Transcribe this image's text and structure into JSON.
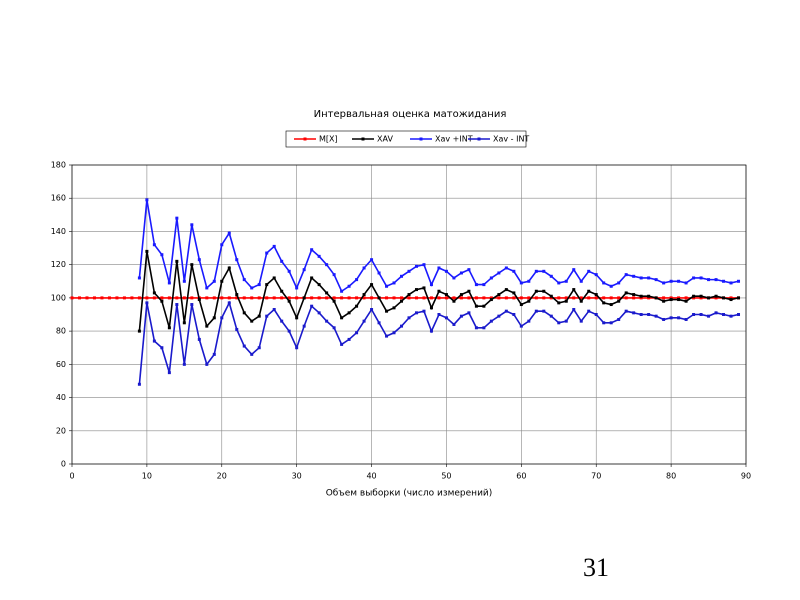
{
  "chart_data": {
    "type": "line",
    "title": "Интервальная оценка матожидания",
    "xlabel": "Объем выборки (число измерений)",
    "x": [
      0,
      1,
      2,
      3,
      4,
      5,
      6,
      7,
      8,
      9,
      10,
      11,
      12,
      13,
      14,
      15,
      16,
      17,
      18,
      19,
      20,
      21,
      22,
      23,
      24,
      25,
      26,
      27,
      28,
      29,
      30,
      31,
      32,
      33,
      34,
      35,
      36,
      37,
      38,
      39,
      40,
      41,
      42,
      43,
      44,
      45,
      46,
      47,
      48,
      49,
      50,
      51,
      52,
      53,
      54,
      55,
      56,
      57,
      58,
      59,
      60,
      61,
      62,
      63,
      64,
      65,
      66,
      67,
      68,
      69,
      70,
      71,
      72,
      73,
      74,
      75,
      76,
      77,
      78,
      79,
      80,
      81,
      82,
      83,
      84,
      85,
      86,
      87,
      88,
      89
    ],
    "series": [
      {
        "name": "M[X]",
        "color": "#ff0000",
        "values": [
          100,
          100,
          100,
          100,
          100,
          100,
          100,
          100,
          100,
          100,
          100,
          100,
          100,
          100,
          100,
          100,
          100,
          100,
          100,
          100,
          100,
          100,
          100,
          100,
          100,
          100,
          100,
          100,
          100,
          100,
          100,
          100,
          100,
          100,
          100,
          100,
          100,
          100,
          100,
          100,
          100,
          100,
          100,
          100,
          100,
          100,
          100,
          100,
          100,
          100,
          100,
          100,
          100,
          100,
          100,
          100,
          100,
          100,
          100,
          100,
          100,
          100,
          100,
          100,
          100,
          100,
          100,
          100,
          100,
          100,
          100,
          100,
          100,
          100,
          100,
          100,
          100,
          100,
          100,
          100,
          100,
          100,
          100,
          100,
          100,
          100,
          100,
          100,
          100,
          100
        ]
      },
      {
        "name": "XAV",
        "color": "#000000",
        "values": [
          null,
          null,
          null,
          null,
          null,
          null,
          null,
          null,
          null,
          80,
          128,
          103,
          98,
          82,
          122,
          85,
          120,
          99,
          83,
          88,
          110,
          118,
          102,
          91,
          86,
          89,
          108,
          112,
          104,
          98,
          88,
          100,
          112,
          108,
          103,
          98,
          88,
          91,
          95,
          102,
          108,
          100,
          92,
          94,
          98,
          102,
          105,
          106,
          94,
          104,
          102,
          98,
          102,
          104,
          95,
          95,
          99,
          102,
          105,
          103,
          96,
          98,
          104,
          104,
          101,
          97,
          98,
          105,
          98,
          104,
          102,
          97,
          96,
          98,
          103,
          102,
          101,
          101,
          100,
          98,
          99,
          99,
          98,
          101,
          101,
          100,
          101,
          100,
          99,
          100
        ]
      },
      {
        "name": "Xav +INT",
        "color": "#1a1aff",
        "values": [
          null,
          null,
          null,
          null,
          null,
          null,
          null,
          null,
          null,
          112,
          159,
          132,
          126,
          109,
          148,
          110,
          144,
          123,
          106,
          110,
          132,
          139,
          123,
          111,
          106,
          108,
          127,
          131,
          122,
          116,
          106,
          117,
          129,
          125,
          120,
          114,
          104,
          107,
          111,
          118,
          123,
          115,
          107,
          109,
          113,
          116,
          119,
          120,
          108,
          118,
          116,
          112,
          115,
          117,
          108,
          108,
          112,
          115,
          118,
          116,
          109,
          110,
          116,
          116,
          113,
          109,
          110,
          117,
          110,
          116,
          114,
          109,
          107,
          109,
          114,
          113,
          112,
          112,
          111,
          109,
          110,
          110,
          109,
          112,
          112,
          111,
          111,
          110,
          109,
          110
        ]
      },
      {
        "name": "Xav - INT",
        "color": "#1a1acc",
        "values": [
          null,
          null,
          null,
          null,
          null,
          null,
          null,
          null,
          null,
          48,
          97,
          74,
          70,
          55,
          96,
          60,
          96,
          75,
          60,
          66,
          88,
          97,
          81,
          71,
          66,
          70,
          89,
          93,
          86,
          80,
          70,
          83,
          95,
          91,
          86,
          82,
          72,
          75,
          79,
          86,
          93,
          85,
          77,
          79,
          83,
          88,
          91,
          92,
          80,
          90,
          88,
          84,
          89,
          91,
          82,
          82,
          86,
          89,
          92,
          90,
          83,
          86,
          92,
          92,
          89,
          85,
          86,
          93,
          86,
          92,
          90,
          85,
          85,
          87,
          92,
          91,
          90,
          90,
          89,
          87,
          88,
          88,
          87,
          90,
          90,
          89,
          91,
          90,
          89,
          90
        ]
      }
    ],
    "xlim": [
      0,
      90
    ],
    "xticks": [
      0,
      10,
      20,
      30,
      40,
      50,
      60,
      70,
      80,
      90
    ],
    "ylim": [
      0,
      180
    ],
    "yticks": [
      0,
      20,
      40,
      60,
      80,
      100,
      120,
      140,
      160,
      180
    ],
    "grid": true,
    "legend": "top"
  },
  "page_number": "31"
}
